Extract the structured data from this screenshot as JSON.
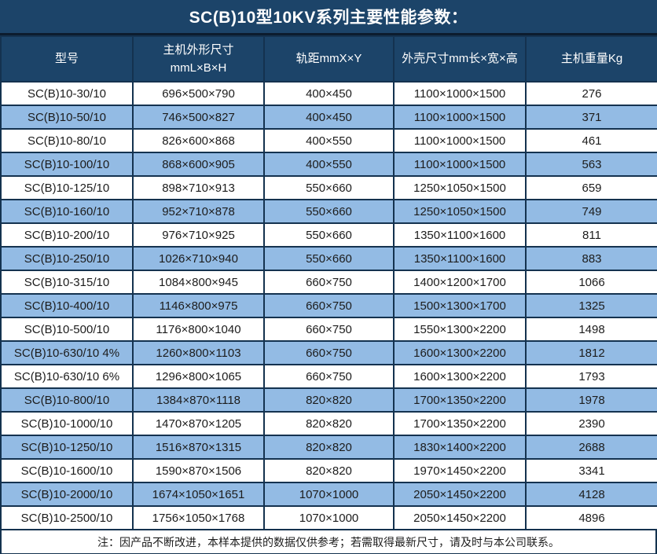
{
  "title": "SC(B)10型10KV系列主要性能参数：",
  "table": {
    "columns": [
      "型号",
      "主机外形尺寸\nmmL×B×H",
      "轨距mmX×Y",
      "外壳尺寸mm长×宽×高",
      "主机重量Kg"
    ],
    "rows": [
      [
        "SC(B)10-30/10",
        "696×500×790",
        "400×450",
        "1100×1000×1500",
        "276"
      ],
      [
        "SC(B)10-50/10",
        "746×500×827",
        "400×450",
        "1100×1000×1500",
        "371"
      ],
      [
        "SC(B)10-80/10",
        "826×600×868",
        "400×550",
        "1100×1000×1500",
        "461"
      ],
      [
        "SC(B)10-100/10",
        "868×600×905",
        "400×550",
        "1100×1000×1500",
        "563"
      ],
      [
        "SC(B)10-125/10",
        "898×710×913",
        "550×660",
        "1250×1050×1500",
        "659"
      ],
      [
        "SC(B)10-160/10",
        "952×710×878",
        "550×660",
        "1250×1050×1500",
        "749"
      ],
      [
        "SC(B)10-200/10",
        "976×710×925",
        "550×660",
        "1350×1100×1600",
        "811"
      ],
      [
        "SC(B)10-250/10",
        "1026×710×940",
        "550×660",
        "1350×1100×1600",
        "883"
      ],
      [
        "SC(B)10-315/10",
        "1084×800×945",
        "660×750",
        "1400×1200×1700",
        "1066"
      ],
      [
        "SC(B)10-400/10",
        "1146×800×975",
        "660×750",
        "1500×1300×1700",
        "1325"
      ],
      [
        "SC(B)10-500/10",
        "1176×800×1040",
        "660×750",
        "1550×1300×2200",
        "1498"
      ],
      [
        "SC(B)10-630/10 4%",
        "1260×800×1103",
        "660×750",
        "1600×1300×2200",
        "1812"
      ],
      [
        "SC(B)10-630/10 6%",
        "1296×800×1065",
        "660×750",
        "1600×1300×2200",
        "1793"
      ],
      [
        "SC(B)10-800/10",
        "1384×870×1118",
        "820×820",
        "1700×1350×2200",
        "1978"
      ],
      [
        "SC(B)10-1000/10",
        "1470×870×1205",
        "820×820",
        "1700×1350×2200",
        "2390"
      ],
      [
        "SC(B)10-1250/10",
        "1516×870×1315",
        "820×820",
        "1830×1400×2200",
        "2688"
      ],
      [
        "SC(B)10-1600/10",
        "1590×870×1506",
        "820×820",
        "1970×1450×2200",
        "3341"
      ],
      [
        "SC(B)10-2000/10",
        "1674×1050×1651",
        "1070×1000",
        "2050×1450×2200",
        "4128"
      ],
      [
        "SC(B)10-2500/10",
        "1756×1050×1768",
        "1070×1000",
        "2050×1450×2200",
        "4896"
      ]
    ]
  },
  "note": "注：因产品不断改进，本样本提供的数据仅供参考；若需取得最新尺寸，请及时与本公司联系。",
  "colors": {
    "header_bg": "#1c4469",
    "row_alt_bg": "#93bbe4",
    "row_bg": "#ffffff",
    "grid": "#14324f",
    "title_sep": "#0c1c2e",
    "header_text": "#ffffff",
    "body_text": "#1c1c1c"
  },
  "chart_data": {
    "type": "table",
    "title": "SC(B)10型10KV系列主要性能参数",
    "categories": [
      "型号",
      "主机外形尺寸 mmL×B×H",
      "轨距mmX×Y",
      "外壳尺寸mm长×宽×高",
      "主机重量Kg"
    ]
  }
}
